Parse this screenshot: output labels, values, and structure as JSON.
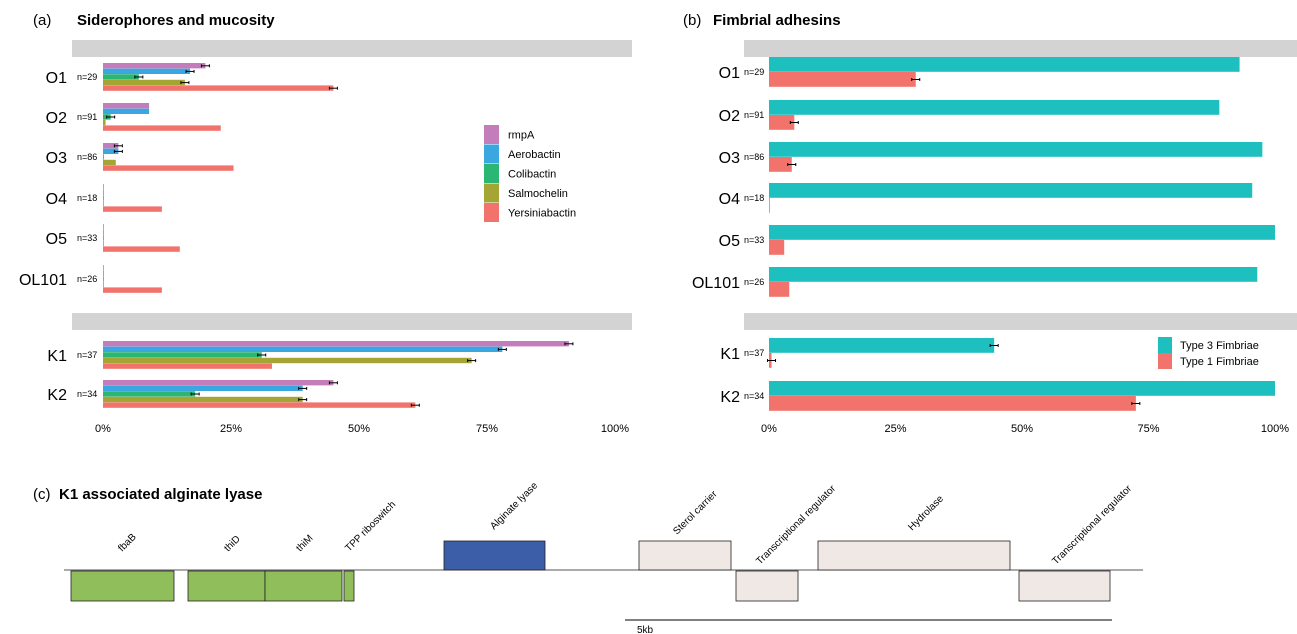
{
  "chart_data": [
    {
      "type": "bar",
      "panel": "(a)",
      "title": "Siderophores and mucosity",
      "orientation": "horizontal",
      "xlim": [
        0,
        100
      ],
      "xticks": [
        "0%",
        "25%",
        "50%",
        "75%",
        "100%"
      ],
      "grid": false,
      "legend_position": "right",
      "facets": [
        {
          "groups": [
            {
              "label": "O1",
              "n": "n=29"
            },
            {
              "label": "O2",
              "n": "n=91"
            },
            {
              "label": "O3",
              "n": "n=86"
            },
            {
              "label": "O4",
              "n": "n=18"
            },
            {
              "label": "O5",
              "n": "n=33"
            },
            {
              "label": "OL101",
              "n": "n=26"
            }
          ]
        },
        {
          "groups": [
            {
              "label": "K1",
              "n": "n=37"
            },
            {
              "label": "K2",
              "n": "n=34"
            }
          ]
        }
      ],
      "series": [
        {
          "name": "rmpA",
          "color": "#C47DBB",
          "values": [
            20,
            9,
            3,
            0,
            0,
            0,
            91,
            45
          ],
          "err": [
            1,
            0,
            1,
            0,
            0,
            0,
            1,
            1
          ]
        },
        {
          "name": "Aerobactin",
          "color": "#3BA7E0",
          "values": [
            17,
            9,
            3,
            0,
            0,
            0,
            78,
            39
          ],
          "err": [
            1,
            0,
            1,
            0,
            0,
            0,
            1,
            1
          ]
        },
        {
          "name": "Colibactin",
          "color": "#2BB673",
          "values": [
            7,
            1.5,
            0,
            0,
            0,
            0,
            31,
            18
          ],
          "err": [
            1,
            1,
            0,
            0,
            0,
            0,
            1,
            1
          ]
        },
        {
          "name": "Salmochelin",
          "color": "#A5A535",
          "values": [
            16,
            0.5,
            2.5,
            0,
            0,
            0,
            72,
            39
          ],
          "err": [
            1,
            0,
            0,
            0,
            0,
            0,
            1,
            1
          ]
        },
        {
          "name": "Yersiniabactin",
          "color": "#F1736B",
          "values": [
            45,
            23,
            25.5,
            11.5,
            15,
            11.5,
            33,
            61
          ],
          "err": [
            1,
            0,
            0,
            0,
            0,
            0,
            0,
            1
          ]
        }
      ]
    },
    {
      "type": "bar",
      "panel": "(b)",
      "title": "Fimbrial adhesins",
      "orientation": "horizontal",
      "xlim": [
        0,
        100
      ],
      "xticks": [
        "0%",
        "25%",
        "50%",
        "75%",
        "100%"
      ],
      "grid": false,
      "legend_position": "bottom-right",
      "facets": [
        {
          "groups": [
            {
              "label": "O1",
              "n": "n=29"
            },
            {
              "label": "O2",
              "n": "n=91"
            },
            {
              "label": "O3",
              "n": "n=86"
            },
            {
              "label": "O4",
              "n": "n=18"
            },
            {
              "label": "O5",
              "n": "n=33"
            },
            {
              "label": "OL101",
              "n": "n=26"
            }
          ]
        },
        {
          "groups": [
            {
              "label": "K1",
              "n": "n=37"
            },
            {
              "label": "K2",
              "n": "n=34"
            }
          ]
        }
      ],
      "series": [
        {
          "name": "Type 3 Fimbriae",
          "color": "#1EBFBF",
          "values": [
            93,
            89,
            97.5,
            95.5,
            100,
            96.5,
            44.5,
            100
          ],
          "err": [
            0,
            0,
            0,
            0,
            0,
            0,
            1,
            0
          ]
        },
        {
          "name": "Type 1 Fimbriae",
          "color": "#F1736B",
          "values": [
            29,
            5,
            4.5,
            0,
            3,
            4,
            0.5,
            72.5
          ],
          "err": [
            1,
            1,
            1,
            0,
            0,
            0,
            1,
            1
          ]
        }
      ]
    }
  ],
  "genes_panel": {
    "panel": "(c)",
    "title": "K1 associated alginate lyase",
    "scale_label": "5kb",
    "genes": [
      {
        "name": "fbaB",
        "color": "#8FBE5A",
        "strand": "bottom"
      },
      {
        "name": "thiD",
        "color": "#8FBE5A",
        "strand": "bottom"
      },
      {
        "name": "thiM",
        "color": "#8FBE5A",
        "strand": "bottom"
      },
      {
        "name": "TPP riboswitch",
        "color": "#8FBE5A",
        "strand": "bottom"
      },
      {
        "name": "Alginate lyase",
        "color": "#3C5DA8",
        "strand": "top"
      },
      {
        "name": "Sterol carrier",
        "color": "#F0E8E4",
        "strand": "top"
      },
      {
        "name": "Transcriptional regulator",
        "color": "#F0E8E4",
        "strand": "bottom"
      },
      {
        "name": "Hydrolase",
        "color": "#F0E8E4",
        "strand": "top"
      },
      {
        "name": "Transcriptional regulator",
        "color": "#F0E8E4",
        "strand": "bottom"
      }
    ]
  }
}
